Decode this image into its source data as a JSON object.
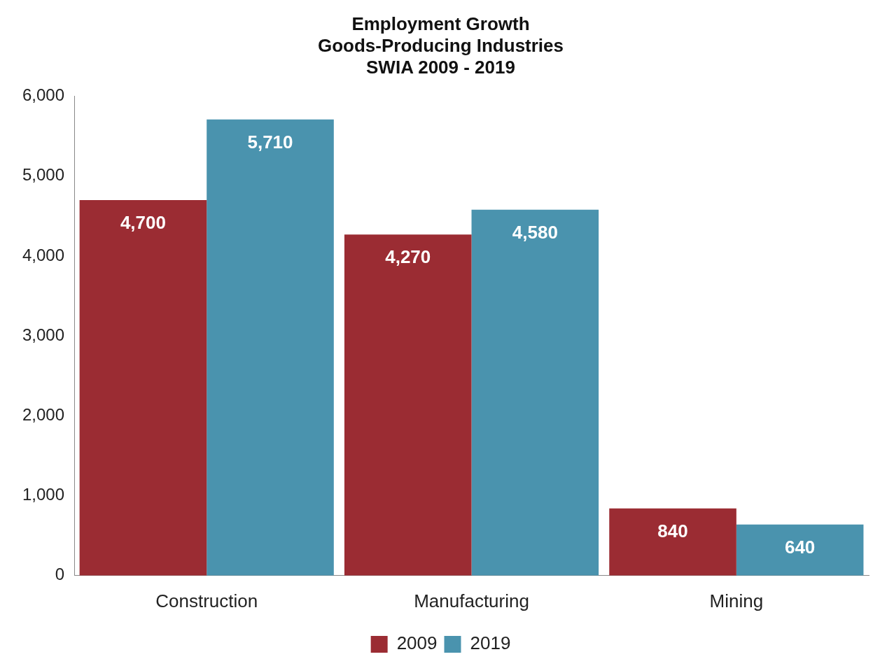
{
  "chart_data": {
    "type": "bar",
    "title": "Employment Growth\nGoods-Producing Industries\nSWIA 2009 - 2019",
    "categories": [
      "Construction",
      "Manufacturing",
      "Mining"
    ],
    "series": [
      {
        "name": "2009",
        "color": "#9b2c33",
        "values": [
          4700,
          4270,
          840
        ],
        "value_labels": [
          "4,700",
          "4,270",
          "840"
        ]
      },
      {
        "name": "2019",
        "color": "#4a93ae",
        "values": [
          5710,
          4580,
          640
        ],
        "value_labels": [
          "5,710",
          "4,580",
          "640"
        ]
      }
    ],
    "ylim": [
      0,
      6000
    ],
    "yticks": [
      {
        "value": 0,
        "label": "0"
      },
      {
        "value": 1000,
        "label": "1,000"
      },
      {
        "value": 2000,
        "label": "2,000"
      },
      {
        "value": 3000,
        "label": "3,000"
      },
      {
        "value": 4000,
        "label": "4,000"
      },
      {
        "value": 5000,
        "label": "5,000"
      },
      {
        "value": 6000,
        "label": "6,000"
      }
    ],
    "grid": false,
    "legend": "bottom"
  }
}
